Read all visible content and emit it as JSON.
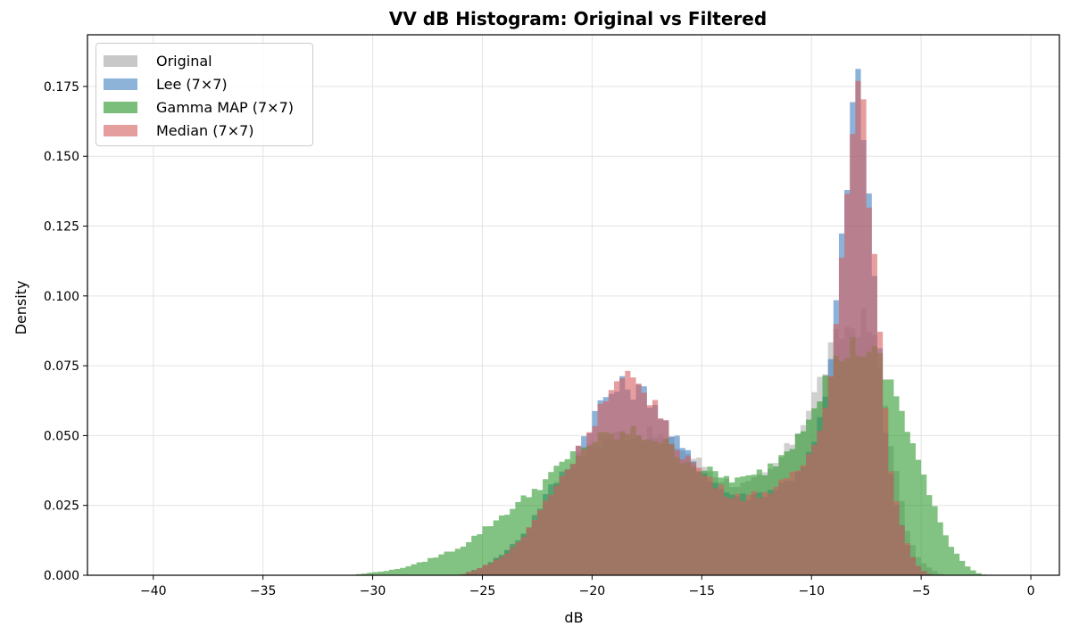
{
  "chart_data": {
    "type": "histogram",
    "title": "VV dB Histogram: Original vs Filtered",
    "xlabel": "dB",
    "ylabel": "Density",
    "xlim": [
      -43,
      1.3
    ],
    "ylim": [
      0,
      0.1935
    ],
    "xticks": [
      -40,
      -35,
      -30,
      -25,
      -20,
      -15,
      -10,
      -5,
      0
    ],
    "xtick_labels": [
      "−40",
      "−35",
      "−30",
      "−25",
      "−20",
      "−15",
      "−10",
      "−5",
      "0"
    ],
    "yticks": [
      0,
      0.025,
      0.05,
      0.075,
      0.1,
      0.125,
      0.15,
      0.175
    ],
    "ytick_labels": [
      "0.000",
      "0.025",
      "0.050",
      "0.075",
      "0.100",
      "0.125",
      "0.150",
      "0.175"
    ],
    "grid": true,
    "legend_position": "upper left",
    "histtype": "stepfilled",
    "alpha": 0.6,
    "bin_width_db": 0.25,
    "series": [
      {
        "name": "Original",
        "color": "#b0b0b0",
        "profile": [
          [
            -26,
            0
          ],
          [
            -25,
            0.003
          ],
          [
            -24,
            0.008
          ],
          [
            -23,
            0.015
          ],
          [
            -22,
            0.028
          ],
          [
            -21,
            0.04
          ],
          [
            -20,
            0.046
          ],
          [
            -19,
            0.05
          ],
          [
            -18,
            0.051
          ],
          [
            -17,
            0.05
          ],
          [
            -16,
            0.046
          ],
          [
            -15,
            0.04
          ],
          [
            -14,
            0.034
          ],
          [
            -13,
            0.032
          ],
          [
            -12,
            0.036
          ],
          [
            -11,
            0.046
          ],
          [
            -10,
            0.062
          ],
          [
            -9,
            0.082
          ],
          [
            -8.5,
            0.088
          ],
          [
            -8,
            0.09
          ],
          [
            -7.5,
            0.091
          ],
          [
            -7,
            0.08
          ],
          [
            -6.5,
            0.055
          ],
          [
            -6,
            0.03
          ],
          [
            -5.5,
            0.012
          ],
          [
            -5,
            0.005
          ],
          [
            -4.5,
            0.002
          ],
          [
            -4,
            0
          ]
        ]
      },
      {
        "name": "Lee (7×7)",
        "color": "#3f7fbf",
        "profile": [
          [
            -26,
            0
          ],
          [
            -25,
            0.003
          ],
          [
            -24,
            0.008
          ],
          [
            -23,
            0.016
          ],
          [
            -22,
            0.03
          ],
          [
            -21,
            0.04
          ],
          [
            -20.5,
            0.048
          ],
          [
            -20,
            0.056
          ],
          [
            -19.5,
            0.063
          ],
          [
            -19,
            0.066
          ],
          [
            -18.5,
            0.068
          ],
          [
            -18,
            0.066
          ],
          [
            -17.5,
            0.065
          ],
          [
            -17,
            0.06
          ],
          [
            -16.5,
            0.052
          ],
          [
            -16,
            0.046
          ],
          [
            -15,
            0.038
          ],
          [
            -14,
            0.03
          ],
          [
            -13,
            0.028
          ],
          [
            -12,
            0.03
          ],
          [
            -11,
            0.034
          ],
          [
            -10,
            0.044
          ],
          [
            -9.5,
            0.058
          ],
          [
            -9,
            0.082
          ],
          [
            -8.75,
            0.108
          ],
          [
            -8.5,
            0.13
          ],
          [
            -8.25,
            0.16
          ],
          [
            -8,
            0.175
          ],
          [
            -7.75,
            0.17
          ],
          [
            -7.5,
            0.15
          ],
          [
            -7.25,
            0.12
          ],
          [
            -7,
            0.095
          ],
          [
            -6.75,
            0.065
          ],
          [
            -6.5,
            0.04
          ],
          [
            -6,
            0.02
          ],
          [
            -5.5,
            0.008
          ],
          [
            -5,
            0.002
          ],
          [
            -4.5,
            0
          ]
        ]
      },
      {
        "name": "Gamma MAP (7×7)",
        "color": "#2e9a2e",
        "profile": [
          [
            -31,
            0
          ],
          [
            -30,
            0.001
          ],
          [
            -29,
            0.002
          ],
          [
            -28,
            0.004
          ],
          [
            -27,
            0.007
          ],
          [
            -26,
            0.01
          ],
          [
            -25,
            0.016
          ],
          [
            -24,
            0.022
          ],
          [
            -23,
            0.028
          ],
          [
            -22,
            0.035
          ],
          [
            -21,
            0.042
          ],
          [
            -20,
            0.048
          ],
          [
            -19,
            0.05
          ],
          [
            -18,
            0.051
          ],
          [
            -17,
            0.049
          ],
          [
            -16,
            0.043
          ],
          [
            -15,
            0.038
          ],
          [
            -14,
            0.035
          ],
          [
            -13,
            0.034
          ],
          [
            -12,
            0.038
          ],
          [
            -11,
            0.046
          ],
          [
            -10,
            0.06
          ],
          [
            -9.5,
            0.068
          ],
          [
            -9,
            0.074
          ],
          [
            -8.5,
            0.08
          ],
          [
            -8,
            0.082
          ],
          [
            -7.5,
            0.08
          ],
          [
            -7,
            0.078
          ],
          [
            -6.5,
            0.07
          ],
          [
            -6,
            0.062
          ],
          [
            -5.5,
            0.05
          ],
          [
            -5,
            0.038
          ],
          [
            -4.5,
            0.026
          ],
          [
            -4,
            0.016
          ],
          [
            -3.5,
            0.009
          ],
          [
            -3,
            0.004
          ],
          [
            -2.5,
            0.001
          ],
          [
            -2,
            0
          ]
        ]
      },
      {
        "name": "Median (7×7)",
        "color": "#d55e5e",
        "profile": [
          [
            -26,
            0
          ],
          [
            -25,
            0.003
          ],
          [
            -24,
            0.007
          ],
          [
            -23,
            0.015
          ],
          [
            -22,
            0.028
          ],
          [
            -21,
            0.04
          ],
          [
            -20.5,
            0.046
          ],
          [
            -20,
            0.054
          ],
          [
            -19.5,
            0.062
          ],
          [
            -19,
            0.066
          ],
          [
            -18.5,
            0.07
          ],
          [
            -18,
            0.068
          ],
          [
            -17.5,
            0.066
          ],
          [
            -17,
            0.06
          ],
          [
            -16.5,
            0.05
          ],
          [
            -16,
            0.045
          ],
          [
            -15,
            0.037
          ],
          [
            -14,
            0.03
          ],
          [
            -13,
            0.028
          ],
          [
            -12,
            0.03
          ],
          [
            -11,
            0.034
          ],
          [
            -10,
            0.044
          ],
          [
            -9.5,
            0.058
          ],
          [
            -9,
            0.08
          ],
          [
            -8.75,
            0.1
          ],
          [
            -8.5,
            0.125
          ],
          [
            -8.25,
            0.158
          ],
          [
            -8,
            0.178
          ],
          [
            -7.75,
            0.168
          ],
          [
            -7.5,
            0.155
          ],
          [
            -7.25,
            0.125
          ],
          [
            -7,
            0.098
          ],
          [
            -6.75,
            0.07
          ],
          [
            -6.5,
            0.044
          ],
          [
            -6,
            0.022
          ],
          [
            -5.5,
            0.008
          ],
          [
            -5,
            0.002
          ],
          [
            -4.5,
            0
          ]
        ]
      }
    ]
  },
  "legend": {
    "items": [
      {
        "label": "Original",
        "color": "#c8c8c8"
      },
      {
        "label": "Lee (7×7)",
        "color": "#8eb3d8"
      },
      {
        "label": "Gamma MAP (7×7)",
        "color": "#7bbd7b"
      },
      {
        "label": "Median (7×7)",
        "color": "#e59e9e"
      }
    ]
  }
}
